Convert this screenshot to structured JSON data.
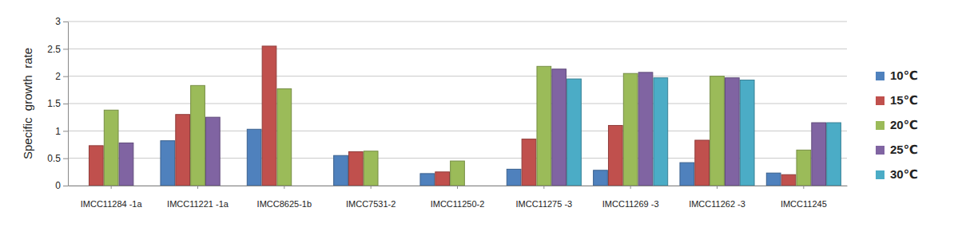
{
  "chart_data": {
    "type": "bar",
    "y_label": "Specific  growth  rate",
    "categories": [
      "IMCC11284 -1a",
      "IMCC11221 -1a",
      "IMCC8625-1b",
      "IMCC7531-2",
      "IMCC11250-2",
      "IMCC11275 -3",
      "IMCC11269 -3",
      "IMCC11262 -3",
      "IMCC11245"
    ],
    "series": [
      {
        "name": "10℃",
        "color": "#4f81bd",
        "values": [
          null,
          0.82,
          1.03,
          0.55,
          0.22,
          0.3,
          0.28,
          0.42,
          0.23
        ]
      },
      {
        "name": "15℃",
        "color": "#c0504d",
        "values": [
          0.73,
          1.3,
          2.55,
          0.62,
          0.25,
          0.85,
          1.1,
          0.83,
          0.2
        ]
      },
      {
        "name": "20℃",
        "color": "#9bbb59",
        "values": [
          1.38,
          1.83,
          1.77,
          0.63,
          0.45,
          2.18,
          2.05,
          2.0,
          0.65
        ]
      },
      {
        "name": "25℃",
        "color": "#8064a2",
        "values": [
          0.78,
          1.25,
          null,
          null,
          null,
          2.13,
          2.07,
          1.97,
          1.15
        ]
      },
      {
        "name": "30℃",
        "color": "#4bacc6",
        "values": [
          null,
          null,
          null,
          null,
          null,
          1.95,
          1.97,
          1.93,
          1.15
        ]
      }
    ],
    "ylim": [
      0,
      3
    ],
    "yticks": [
      0,
      0.5,
      1,
      1.5,
      2,
      2.5,
      3
    ],
    "grid": true,
    "legend": "right"
  }
}
